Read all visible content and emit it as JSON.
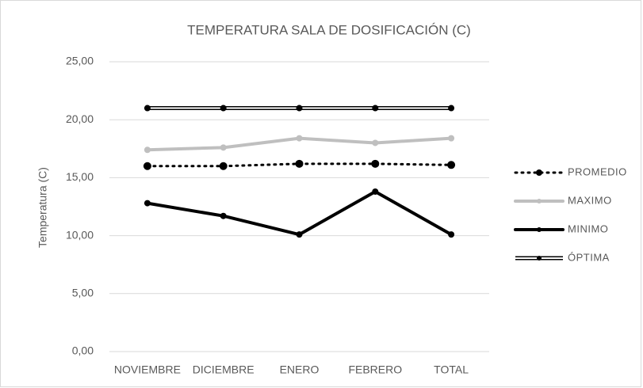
{
  "chart_data": {
    "type": "line",
    "title": "TEMPERATURA SALA DE DOSIFICACIÓN (C)",
    "y_label": "Temperatura (C)",
    "categories": [
      "NOVIEMBRE",
      "DICIEMBRE",
      "ENERO",
      "FEBRERO",
      "TOTAL"
    ],
    "series": [
      {
        "name": "PROMEDIO",
        "color": "#000000",
        "line_style": "dotted",
        "values": [
          16.0,
          16.0,
          16.2,
          16.2,
          16.1
        ]
      },
      {
        "name": "MAXIMO",
        "color": "#bfbfbf",
        "line_style": "solid",
        "values": [
          17.4,
          17.6,
          18.4,
          18.0,
          18.4
        ]
      },
      {
        "name": "MINIMO",
        "color": "#000000",
        "line_style": "solid",
        "values": [
          12.8,
          11.7,
          10.1,
          13.8,
          10.1
        ]
      },
      {
        "name": "ÓPTIMA",
        "color": "#000000",
        "line_style": "double",
        "values": [
          21.0,
          21.0,
          21.0,
          21.0,
          21.0
        ]
      }
    ],
    "ylim": [
      0,
      25
    ],
    "yticks": [
      {
        "value": 0,
        "label": "0,00"
      },
      {
        "value": 5,
        "label": "5,00"
      },
      {
        "value": 10,
        "label": "10,00"
      },
      {
        "value": 15,
        "label": "15,00"
      },
      {
        "value": 20,
        "label": "20,00"
      },
      {
        "value": 25,
        "label": "25,00"
      }
    ],
    "grid": true,
    "legend": "right"
  }
}
